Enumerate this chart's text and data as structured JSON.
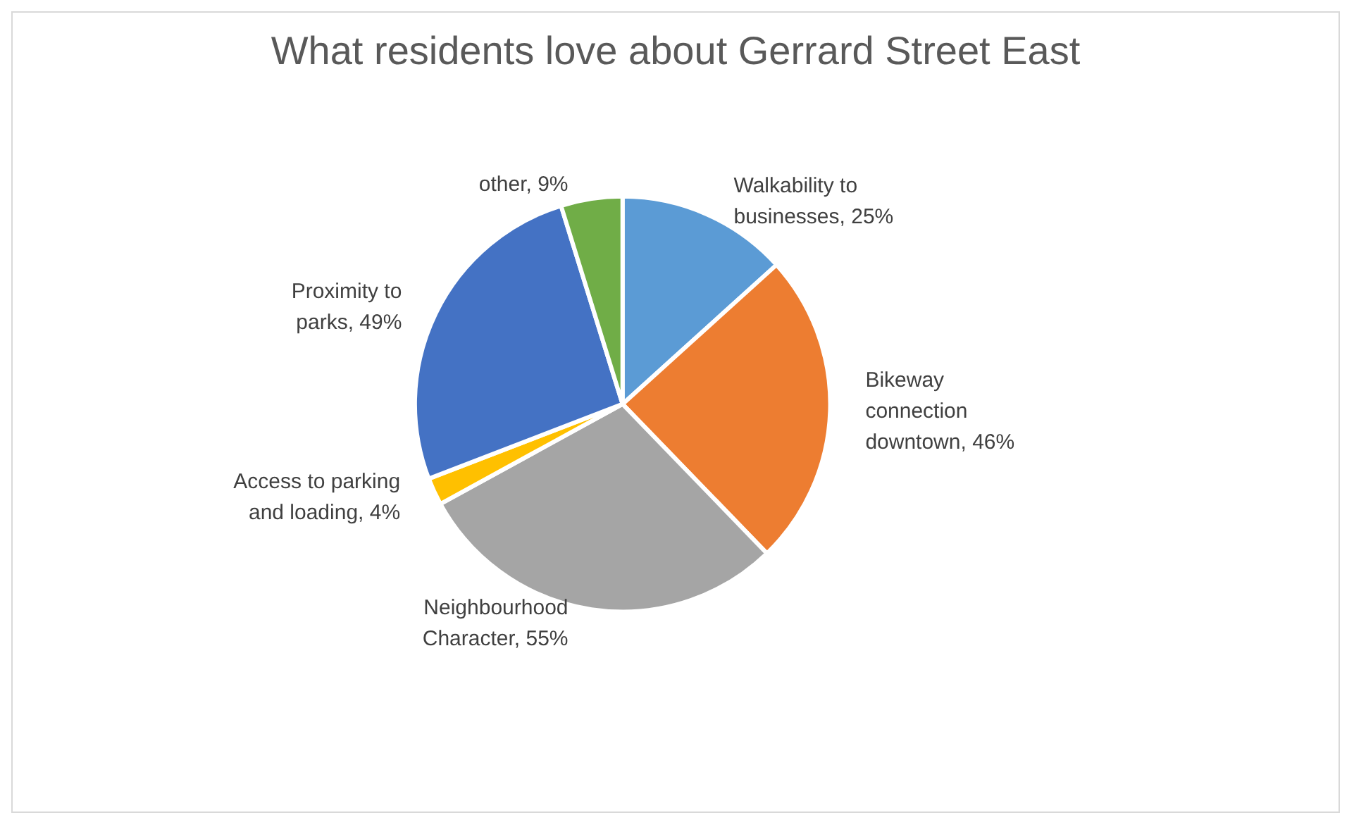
{
  "chart_data": {
    "type": "pie",
    "title": "What residents love about Gerrard Street East",
    "categories": [
      "Walkability to businesses",
      "Bikeway connection downtown",
      "Neighbourhood Character",
      "Access to parking and loading",
      "Proximity to parks",
      "other"
    ],
    "value_labels": [
      "25%",
      "46%",
      "55%",
      "4%",
      "49%",
      "9%"
    ],
    "values": [
      25,
      46,
      55,
      4,
      49,
      9
    ],
    "colors": [
      "#5b9bd5",
      "#ed7d31",
      "#a5a5a5",
      "#ffc000",
      "#4472c4",
      "#70ad47"
    ],
    "legend": false
  }
}
